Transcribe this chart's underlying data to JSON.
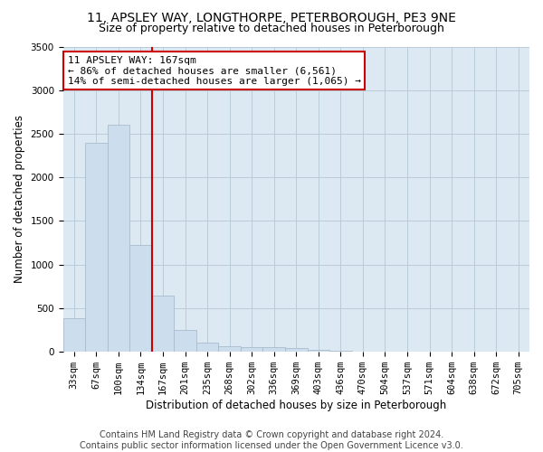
{
  "title": "11, APSLEY WAY, LONGTHORPE, PETERBOROUGH, PE3 9NE",
  "subtitle": "Size of property relative to detached houses in Peterborough",
  "xlabel": "Distribution of detached houses by size in Peterborough",
  "ylabel": "Number of detached properties",
  "footer_line1": "Contains HM Land Registry data © Crown copyright and database right 2024.",
  "footer_line2": "Contains public sector information licensed under the Open Government Licence v3.0.",
  "annotation_line1": "11 APSLEY WAY: 167sqm",
  "annotation_line2": "← 86% of detached houses are smaller (6,561)",
  "annotation_line3": "14% of semi-detached houses are larger (1,065) →",
  "categories": [
    "33sqm",
    "67sqm",
    "100sqm",
    "134sqm",
    "167sqm",
    "201sqm",
    "235sqm",
    "268sqm",
    "302sqm",
    "336sqm",
    "369sqm",
    "403sqm",
    "436sqm",
    "470sqm",
    "504sqm",
    "537sqm",
    "571sqm",
    "604sqm",
    "638sqm",
    "672sqm",
    "705sqm"
  ],
  "values": [
    390,
    2400,
    2600,
    1230,
    650,
    250,
    110,
    65,
    55,
    50,
    40,
    20,
    10,
    5,
    5,
    3,
    2,
    2,
    1,
    1,
    1
  ],
  "bar_color": "#ccdded",
  "bar_edge_color": "#aabccc",
  "vline_color": "#cc0000",
  "vline_x_index": 4,
  "annotation_box_color": "#cc0000",
  "annotation_fill": "#ffffff",
  "background_color": "#ffffff",
  "plot_bg_color": "#dce8f2",
  "grid_color": "#b8ccd8",
  "ylim": [
    0,
    3500
  ],
  "yticks": [
    0,
    500,
    1000,
    1500,
    2000,
    2500,
    3000,
    3500
  ],
  "title_fontsize": 10,
  "subtitle_fontsize": 9,
  "axis_label_fontsize": 8.5,
  "tick_fontsize": 7.5,
  "annotation_fontsize": 8,
  "footer_fontsize": 7
}
